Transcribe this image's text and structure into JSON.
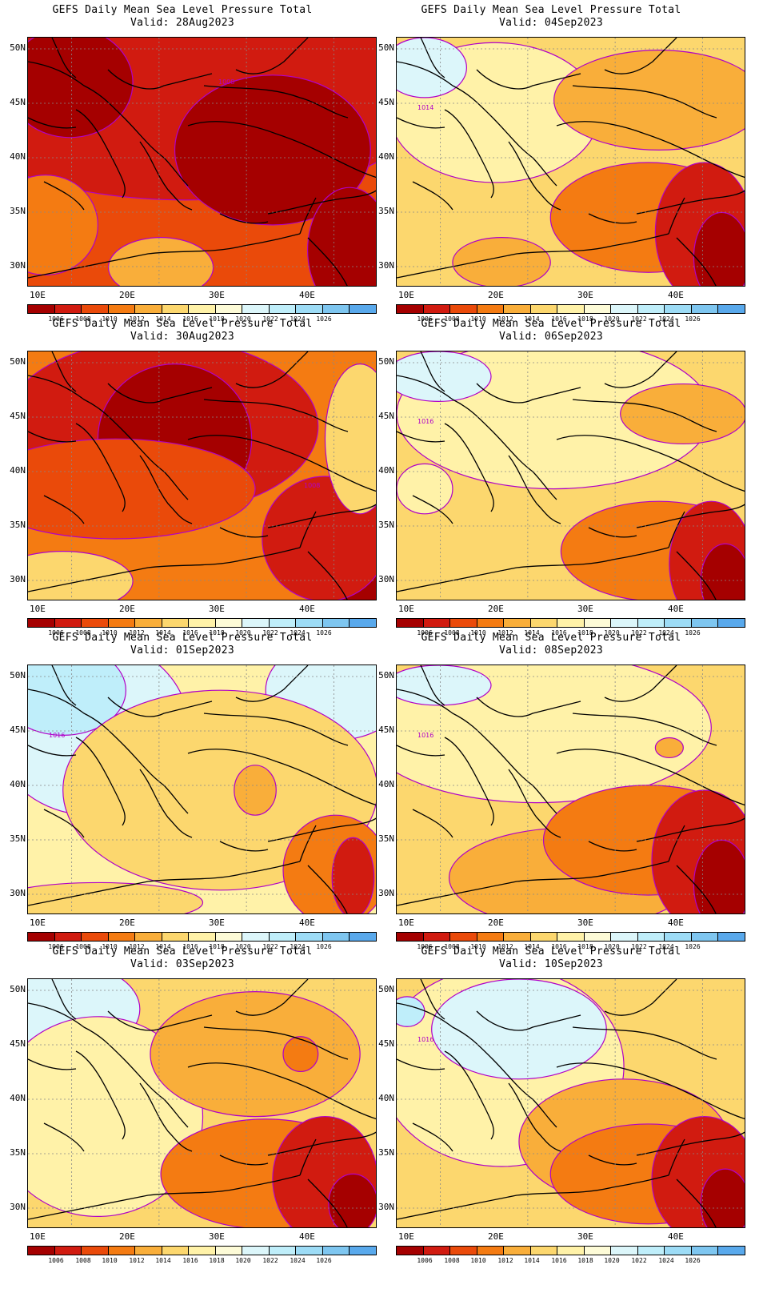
{
  "title_line1": "GEFS Daily Mean Sea Level Pressure Total",
  "colorbar": {
    "colors": [
      "#a50000",
      "#d11b10",
      "#ea4a0a",
      "#f47b12",
      "#f9ae3a",
      "#fcd76e",
      "#fff2a8",
      "#fdfbd7",
      "#dcf6fa",
      "#bfeefa",
      "#9ddcf6",
      "#7ec6f0",
      "#59a9ec",
      "#3b8be0",
      "#1e6fd0"
    ],
    "labels": [
      "1006",
      "1008",
      "1010",
      "1012",
      "1014",
      "1016",
      "1018",
      "1020",
      "1022",
      "1024",
      "1026"
    ]
  },
  "axes": {
    "lat_labels": [
      "50N",
      "45N",
      "40N",
      "35N",
      "30N"
    ],
    "lon_labels": [
      "10E",
      "20E",
      "30E",
      "40E"
    ]
  },
  "panels": [
    {
      "valid": "Valid: 28Aug2023",
      "contour_label": "1008",
      "bg": "#ea4a0a",
      "blobs": [
        [
          "#d11b10",
          0.45,
          0.25,
          0.7,
          0.4
        ],
        [
          "#a50000",
          0.12,
          0.18,
          0.18,
          0.22
        ],
        [
          "#a50000",
          0.7,
          0.45,
          0.28,
          0.3
        ],
        [
          "#a50000",
          0.92,
          0.85,
          0.12,
          0.25
        ],
        [
          "#f47b12",
          0.05,
          0.75,
          0.15,
          0.2
        ],
        [
          "#f9ae3a",
          0.38,
          0.92,
          0.15,
          0.12
        ]
      ]
    },
    {
      "valid": "Valid: 04Sep2023",
      "contour_label": "1014",
      "bg": "#fcd76e",
      "blobs": [
        [
          "#fff2a8",
          0.28,
          0.3,
          0.3,
          0.28
        ],
        [
          "#dcf6fa",
          0.08,
          0.12,
          0.12,
          0.12
        ],
        [
          "#f9ae3a",
          0.75,
          0.25,
          0.3,
          0.2
        ],
        [
          "#f47b12",
          0.72,
          0.72,
          0.28,
          0.22
        ],
        [
          "#d11b10",
          0.88,
          0.78,
          0.14,
          0.28
        ],
        [
          "#a50000",
          0.93,
          0.88,
          0.08,
          0.18
        ],
        [
          "#f9ae3a",
          0.3,
          0.9,
          0.14,
          0.1
        ]
      ]
    },
    {
      "valid": "Valid: 30Aug2023",
      "contour_label": "1008",
      "bg": "#f47b12",
      "blobs": [
        [
          "#d11b10",
          0.38,
          0.3,
          0.45,
          0.35
        ],
        [
          "#a50000",
          0.42,
          0.35,
          0.22,
          0.3
        ],
        [
          "#ea4a0a",
          0.25,
          0.55,
          0.4,
          0.2
        ],
        [
          "#a50000",
          0.92,
          0.88,
          0.12,
          0.22
        ],
        [
          "#d11b10",
          0.85,
          0.75,
          0.18,
          0.25
        ],
        [
          "#fcd76e",
          0.1,
          0.92,
          0.2,
          0.12
        ],
        [
          "#fcd76e",
          0.95,
          0.35,
          0.1,
          0.3
        ]
      ]
    },
    {
      "valid": "Valid: 06Sep2023",
      "contour_label": "1016",
      "bg": "#fcd76e",
      "blobs": [
        [
          "#fff2a8",
          0.45,
          0.25,
          0.45,
          0.3
        ],
        [
          "#dcf6fa",
          0.12,
          0.1,
          0.15,
          0.1
        ],
        [
          "#f9ae3a",
          0.82,
          0.25,
          0.18,
          0.12
        ],
        [
          "#f47b12",
          0.75,
          0.8,
          0.28,
          0.2
        ],
        [
          "#d11b10",
          0.9,
          0.85,
          0.12,
          0.25
        ],
        [
          "#a50000",
          0.94,
          0.92,
          0.07,
          0.15
        ],
        [
          "#fff2a8",
          0.08,
          0.55,
          0.08,
          0.1
        ]
      ]
    },
    {
      "valid": "Valid: 01Sep2023",
      "contour_label": "1016",
      "bg": "#fff2a8",
      "blobs": [
        [
          "#dcf6fa",
          0.18,
          0.25,
          0.28,
          0.35
        ],
        [
          "#bfeefa",
          0.1,
          0.1,
          0.18,
          0.18
        ],
        [
          "#dcf6fa",
          0.88,
          0.1,
          0.2,
          0.2
        ],
        [
          "#fcd76e",
          0.55,
          0.5,
          0.45,
          0.4
        ],
        [
          "#f9ae3a",
          0.65,
          0.5,
          0.06,
          0.1
        ],
        [
          "#f47b12",
          0.88,
          0.82,
          0.15,
          0.22
        ],
        [
          "#d11b10",
          0.93,
          0.85,
          0.06,
          0.16
        ],
        [
          "#fcd76e",
          0.2,
          0.95,
          0.3,
          0.08
        ]
      ]
    },
    {
      "valid": "Valid: 08Sep2023",
      "contour_label": "1016",
      "bg": "#fcd76e",
      "blobs": [
        [
          "#fff2a8",
          0.4,
          0.25,
          0.5,
          0.3
        ],
        [
          "#dcf6fa",
          0.12,
          0.08,
          0.15,
          0.08
        ],
        [
          "#f9ae3a",
          0.5,
          0.85,
          0.35,
          0.2
        ],
        [
          "#f47b12",
          0.72,
          0.7,
          0.3,
          0.22
        ],
        [
          "#d11b10",
          0.88,
          0.78,
          0.15,
          0.28
        ],
        [
          "#a50000",
          0.93,
          0.88,
          0.08,
          0.18
        ],
        [
          "#f9ae3a",
          0.78,
          0.33,
          0.04,
          0.04
        ]
      ]
    },
    {
      "valid": "Valid: 03Sep2023",
      "contour_label": "",
      "bg": "#fcd76e",
      "blobs": [
        [
          "#dcf6fa",
          0.12,
          0.12,
          0.2,
          0.18
        ],
        [
          "#fff2a8",
          0.2,
          0.55,
          0.3,
          0.4
        ],
        [
          "#f9ae3a",
          0.65,
          0.3,
          0.3,
          0.25
        ],
        [
          "#f47b12",
          0.78,
          0.3,
          0.05,
          0.07
        ],
        [
          "#f47b12",
          0.68,
          0.78,
          0.3,
          0.22
        ],
        [
          "#d11b10",
          0.85,
          0.8,
          0.15,
          0.25
        ],
        [
          "#a50000",
          0.93,
          0.9,
          0.07,
          0.12
        ]
      ]
    },
    {
      "valid": "Valid: 10Sep2023",
      "contour_label": "1016",
      "bg": "#fcd76e",
      "blobs": [
        [
          "#fff2a8",
          0.3,
          0.35,
          0.35,
          0.4
        ],
        [
          "#dcf6fa",
          0.35,
          0.2,
          0.25,
          0.2
        ],
        [
          "#bfeefa",
          0.03,
          0.13,
          0.05,
          0.06
        ],
        [
          "#f9ae3a",
          0.65,
          0.65,
          0.3,
          0.25
        ],
        [
          "#f47b12",
          0.72,
          0.78,
          0.28,
          0.2
        ],
        [
          "#d11b10",
          0.88,
          0.8,
          0.15,
          0.25
        ],
        [
          "#a50000",
          0.94,
          0.9,
          0.07,
          0.14
        ]
      ]
    }
  ]
}
